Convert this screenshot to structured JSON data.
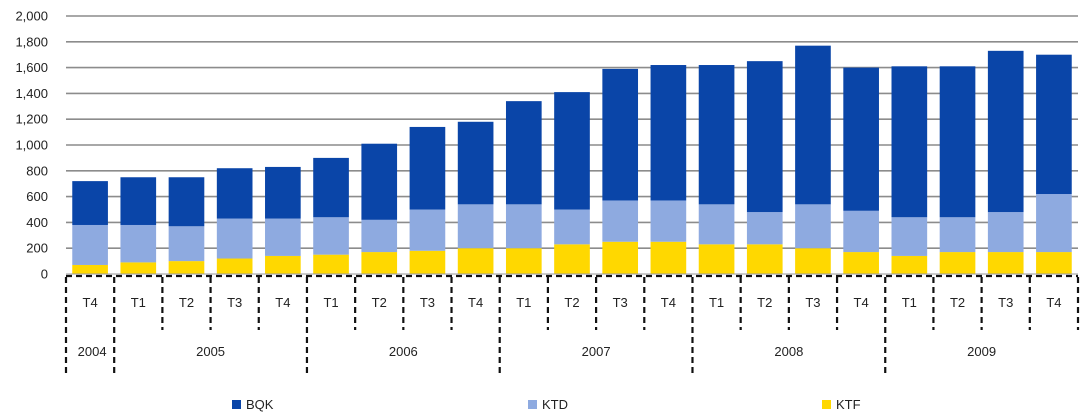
{
  "chart_data": {
    "type": "bar",
    "stacked": true,
    "title": "",
    "xlabel": "",
    "ylabel": "",
    "ylim": [
      0,
      2000
    ],
    "yticks": [
      0,
      200,
      400,
      600,
      800,
      1000,
      1200,
      1400,
      1600,
      1800,
      2000
    ],
    "ytick_labels": [
      "0",
      "200",
      "400",
      "600",
      "800",
      "1,000",
      "1,200",
      "1,400",
      "1,600",
      "1,800",
      "2,000"
    ],
    "grid": true,
    "legend_position": "bottom",
    "categories": [
      "T4",
      "T1",
      "T2",
      "T3",
      "T4",
      "T1",
      "T2",
      "T3",
      "T4",
      "T1",
      "T2",
      "T3",
      "T4",
      "T1",
      "T2",
      "T3",
      "T4",
      "T1",
      "T2",
      "T3",
      "T4"
    ],
    "year_groups": [
      {
        "label": "2004",
        "count": 1
      },
      {
        "label": "2005",
        "count": 4
      },
      {
        "label": "2006",
        "count": 4
      },
      {
        "label": "2007",
        "count": 4
      },
      {
        "label": "2008",
        "count": 4
      },
      {
        "label": "2009",
        "count": 4
      }
    ],
    "series": [
      {
        "name": "KTF",
        "color": "#ffd800",
        "values": [
          70,
          90,
          100,
          120,
          140,
          150,
          170,
          180,
          200,
          200,
          230,
          250,
          250,
          230,
          230,
          200,
          170,
          140,
          170,
          170,
          170
        ]
      },
      {
        "name": "KTD",
        "color": "#8eaae0",
        "values": [
          310,
          290,
          270,
          310,
          290,
          290,
          250,
          320,
          340,
          340,
          270,
          320,
          320,
          310,
          250,
          340,
          320,
          300,
          270,
          310,
          450
        ]
      },
      {
        "name": "BQK",
        "color": "#0a45a8",
        "values": [
          340,
          370,
          380,
          390,
          400,
          460,
          590,
          640,
          640,
          800,
          910,
          1020,
          1050,
          1080,
          1170,
          1230,
          1110,
          1170,
          1170,
          1250,
          1080
        ]
      }
    ],
    "legend_order": [
      "BQK",
      "KTD",
      "KTF"
    ]
  }
}
